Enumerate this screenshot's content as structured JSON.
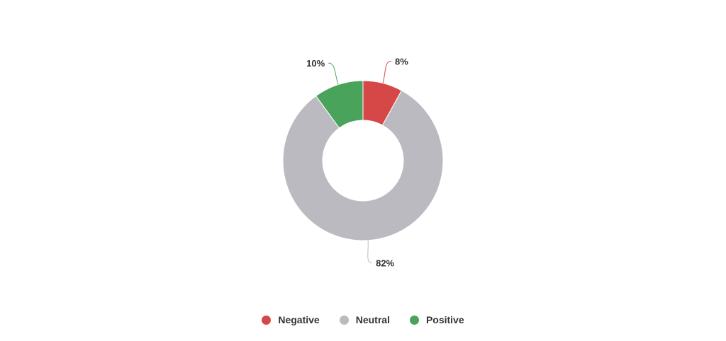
{
  "chart_data": {
    "type": "pie",
    "donut": true,
    "title": "",
    "start_angle_deg": 0,
    "direction": "clockwise",
    "legend_position": "bottom-center",
    "series": [
      {
        "name": "Negative",
        "value": 8,
        "label": "8%",
        "color": "#d64848"
      },
      {
        "name": "Neutral",
        "value": 82,
        "label": "82%",
        "color": "#bbbac1"
      },
      {
        "name": "Positive",
        "value": 10,
        "label": "10%",
        "color": "#4aa35a"
      }
    ]
  },
  "legend": {
    "items": [
      {
        "label": "Negative",
        "color": "#d64848"
      },
      {
        "label": "Neutral",
        "color": "#bbbac1"
      },
      {
        "label": "Positive",
        "color": "#4aa35a"
      }
    ]
  }
}
